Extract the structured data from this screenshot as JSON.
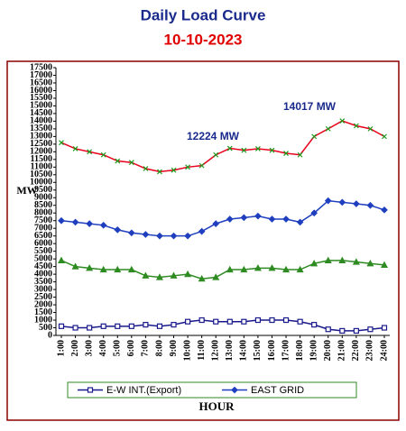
{
  "chart_data": {
    "type": "line",
    "title": "Daily Load Curve",
    "subtitle": "10-10-2023",
    "ylabel": "MW",
    "xlabel": "HOUR",
    "annotations": [
      "12224 MW",
      "14017 MW"
    ],
    "categories": [
      "1:00",
      "2:00",
      "3:00",
      "4:00",
      "5:00",
      "6:00",
      "7:00",
      "8:00",
      "9:00",
      "10:00",
      "11:00",
      "12:00",
      "13:00",
      "14:00",
      "15:00",
      "16:00",
      "17:00",
      "18:00",
      "19:00",
      "20:00",
      "21:00",
      "22:00",
      "23:00",
      "24:00"
    ],
    "ylim": [
      0,
      17500
    ],
    "yticks": [
      0,
      500,
      1000,
      1500,
      2000,
      2500,
      3000,
      3500,
      4000,
      4500,
      5000,
      5500,
      6000,
      6500,
      7000,
      7500,
      8000,
      8500,
      9000,
      9500,
      10000,
      10500,
      11000,
      11500,
      12000,
      12500,
      13000,
      13500,
      14000,
      14500,
      15000,
      15500,
      16000,
      16500,
      17000,
      17500
    ],
    "grid": false,
    "legend": "bottom",
    "series": [
      {
        "color": "#e8001c",
        "marker_color": "#1a9a1a",
        "marker": "x",
        "values": [
          12600,
          12200,
          12000,
          11800,
          11400,
          11300,
          10900,
          10700,
          10800,
          11000,
          11100,
          11800,
          12224,
          12100,
          12200,
          12100,
          11900,
          11800,
          13000,
          13500,
          14017,
          13700,
          13500,
          13000
        ]
      },
      {
        "name": "EAST GRID",
        "color": "#1f3fbf",
        "marker_color": "#1f3fbf",
        "marker": "diamond",
        "values": [
          7500,
          7400,
          7300,
          7200,
          6900,
          6700,
          6600,
          6500,
          6500,
          6500,
          6800,
          7300,
          7600,
          7700,
          7800,
          7600,
          7600,
          7400,
          8000,
          8800,
          8700,
          8600,
          8500,
          8200
        ]
      },
      {
        "color": "#2e8b22",
        "marker_color": "#2e8b22",
        "marker": "triangle",
        "values": [
          4900,
          4500,
          4400,
          4300,
          4300,
          4300,
          3900,
          3800,
          3900,
          4000,
          3700,
          3800,
          4300,
          4300,
          4400,
          4400,
          4300,
          4300,
          4700,
          4900,
          4900,
          4800,
          4700,
          4600
        ]
      },
      {
        "name": "E-W INT.(Export)",
        "color": "#1a1a8c",
        "marker_color": "#1a1a8c",
        "marker": "square",
        "values": [
          600,
          500,
          500,
          600,
          600,
          600,
          700,
          600,
          700,
          900,
          1000,
          900,
          900,
          900,
          1000,
          1000,
          1000,
          900,
          700,
          400,
          300,
          300,
          400,
          500
        ]
      }
    ]
  }
}
